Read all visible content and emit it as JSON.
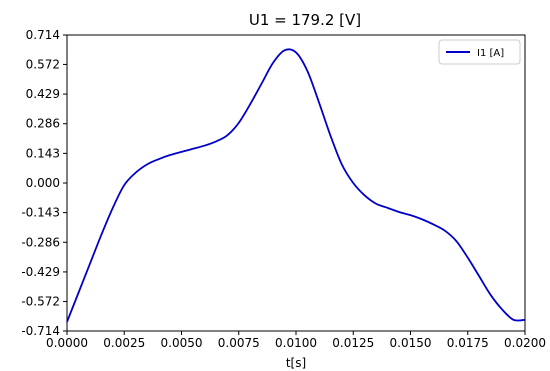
{
  "chart_data": {
    "type": "line",
    "title": "U1 = 179.2 [V]",
    "xlabel": "t[s]",
    "ylabel": "",
    "xlim": [
      0.0,
      0.02
    ],
    "ylim": [
      -0.714,
      0.714
    ],
    "x_ticks": [
      "0.0000",
      "0.0025",
      "0.0050",
      "0.0075",
      "0.0100",
      "0.0125",
      "0.0150",
      "0.0175",
      "0.0200"
    ],
    "x_tick_values": [
      0.0,
      0.0025,
      0.005,
      0.0075,
      0.01,
      0.0125,
      0.015,
      0.0175,
      0.02
    ],
    "y_ticks": [
      "0.714",
      "0.572",
      "0.429",
      "0.286",
      "0.143",
      "0.000",
      "-0.143",
      "-0.286",
      "-0.429",
      "-0.572",
      "-0.714"
    ],
    "y_tick_values": [
      0.714,
      0.572,
      0.429,
      0.286,
      0.143,
      0.0,
      -0.143,
      -0.286,
      -0.429,
      -0.572,
      -0.714
    ],
    "grid": false,
    "legend_position": "top-right",
    "series": [
      {
        "name": "I1 [A]",
        "color": "#0000c8",
        "x": [
          0.0,
          0.0005,
          0.001,
          0.0015,
          0.002,
          0.0025,
          0.003,
          0.0035,
          0.004,
          0.0045,
          0.005,
          0.0055,
          0.006,
          0.0065,
          0.007,
          0.0075,
          0.008,
          0.0085,
          0.009,
          0.0095,
          0.01,
          0.0105,
          0.011,
          0.0115,
          0.012,
          0.0125,
          0.013,
          0.0135,
          0.014,
          0.0145,
          0.015,
          0.0155,
          0.016,
          0.0165,
          0.017,
          0.0175,
          0.018,
          0.0185,
          0.019,
          0.0195,
          0.02
        ],
        "y": [
          -0.67,
          -0.53,
          -0.39,
          -0.25,
          -0.12,
          -0.01,
          0.05,
          0.09,
          0.115,
          0.135,
          0.15,
          0.165,
          0.18,
          0.2,
          0.23,
          0.29,
          0.38,
          0.48,
          0.58,
          0.64,
          0.63,
          0.54,
          0.39,
          0.23,
          0.09,
          0.0,
          -0.06,
          -0.1,
          -0.12,
          -0.14,
          -0.155,
          -0.175,
          -0.2,
          -0.23,
          -0.28,
          -0.36,
          -0.45,
          -0.54,
          -0.61,
          -0.66,
          -0.66
        ]
      }
    ]
  }
}
